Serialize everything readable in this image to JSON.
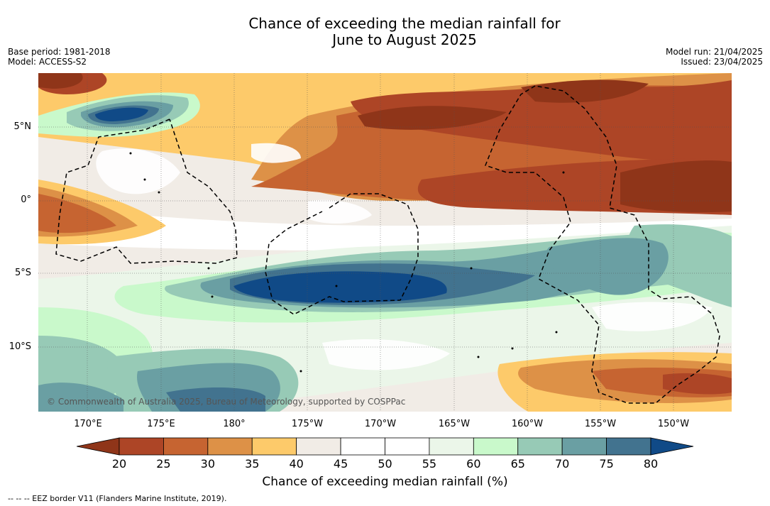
{
  "title_line1": "Chance of exceeding the median rainfall for",
  "title_line2": "June to August 2025",
  "base_period": "Base period: 1981-2018",
  "model": "Model: ACCESS-S2",
  "model_run": "Model run: 21/04/2025",
  "issued": "Issued: 23/04/2025",
  "lat_labels": [
    "5°N",
    "0°",
    "5°S",
    "10°S"
  ],
  "lon_labels": [
    "170°E",
    "175°E",
    "180°",
    "175°W",
    "170°W",
    "165°W",
    "160°W",
    "155°W",
    "150°W"
  ],
  "copyright": "© Commonwealth of Australia 2025, Bureau of Meteorology, supported by COSPPac",
  "colorbar": {
    "ticks": [
      "20",
      "25",
      "30",
      "35",
      "40",
      "45",
      "50",
      "55",
      "60",
      "65",
      "70",
      "75",
      "80"
    ],
    "colors": [
      "#8f3519",
      "#ad4526",
      "#c66431",
      "#dd9147",
      "#fdca6a",
      "#f1ece6",
      "#ffffff",
      "#ffffff",
      "#ebf6e9",
      "#c9f9cb",
      "#97cab6",
      "#6a9fa3",
      "#42738f",
      "#104a87"
    ],
    "label": "Chance of exceeding median rainfall (%)"
  },
  "legend_note": "--  --  -- EEZ border V11 (Flanders Marine Institute, 2019)."
}
